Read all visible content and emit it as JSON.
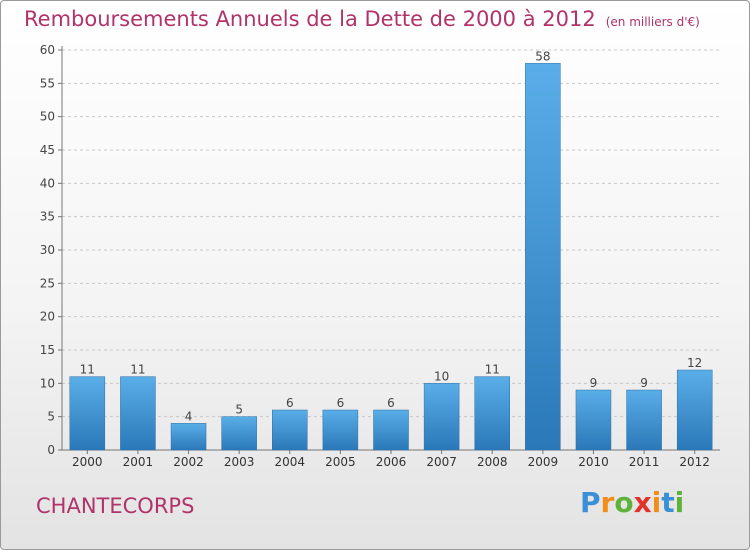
{
  "title": "Remboursements Annuels de la Dette de 2000 à 2012",
  "unit": "(en milliers d'€)",
  "commune": "CHANTECORPS",
  "logo": {
    "letters": [
      "P",
      "r",
      "o",
      "x",
      "i",
      "t",
      "i"
    ],
    "colors": [
      "#3a8fd6",
      "#f28c1a",
      "#5db33b",
      "#e2332a",
      "#f28c1a",
      "#3a8fd6",
      "#5db33b"
    ]
  },
  "colors": {
    "title": "#b0336a",
    "bar_light": "#5aaee8",
    "bar_dark": "#2a78b8",
    "grid": "#c8c8c8"
  },
  "chart_data": {
    "type": "bar",
    "categories": [
      "2000",
      "2001",
      "2002",
      "2003",
      "2004",
      "2005",
      "2006",
      "2007",
      "2008",
      "2009",
      "2010",
      "2011",
      "2012"
    ],
    "values": [
      11,
      11,
      4,
      5,
      6,
      6,
      6,
      10,
      11,
      58,
      9,
      9,
      12
    ],
    "ylim": [
      0,
      60
    ],
    "yticks": [
      0,
      5,
      10,
      15,
      20,
      25,
      30,
      35,
      40,
      45,
      50,
      55,
      60
    ],
    "grid": "horizontal-dashed",
    "data_labels": true
  }
}
